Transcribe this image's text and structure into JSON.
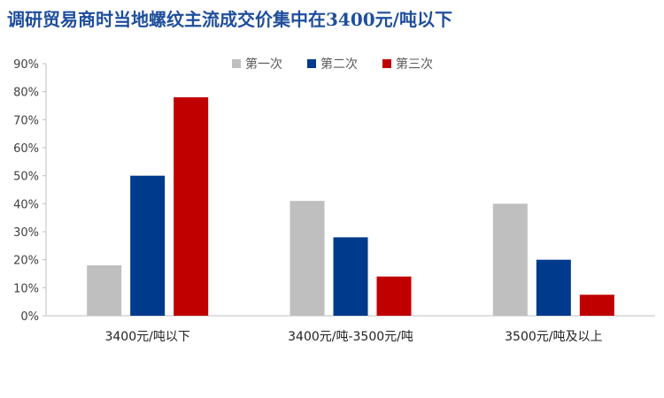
{
  "chart_data": {
    "type": "bar",
    "title": "调研贸易商时当地螺纹主流成交价集中在3400元/吨以下",
    "categories": [
      "3400元/吨以下",
      "3400元/吨-3500元/吨",
      "3500元/吨及以上"
    ],
    "series": [
      {
        "name": "第一次",
        "color": "#bfbfbf",
        "values": [
          18,
          41,
          40
        ]
      },
      {
        "name": "第二次",
        "color": "#003a8c",
        "values": [
          50,
          28,
          20
        ]
      },
      {
        "name": "第三次",
        "color": "#c00000",
        "values": [
          78,
          14,
          7.5
        ]
      }
    ],
    "y_ticks": [
      "0%",
      "10%",
      "20%",
      "30%",
      "40%",
      "50%",
      "60%",
      "70%",
      "80%",
      "90%"
    ],
    "ylim": [
      0,
      90
    ],
    "xlabel": "",
    "ylabel": "",
    "grid": false,
    "legend_position": "top-center"
  }
}
